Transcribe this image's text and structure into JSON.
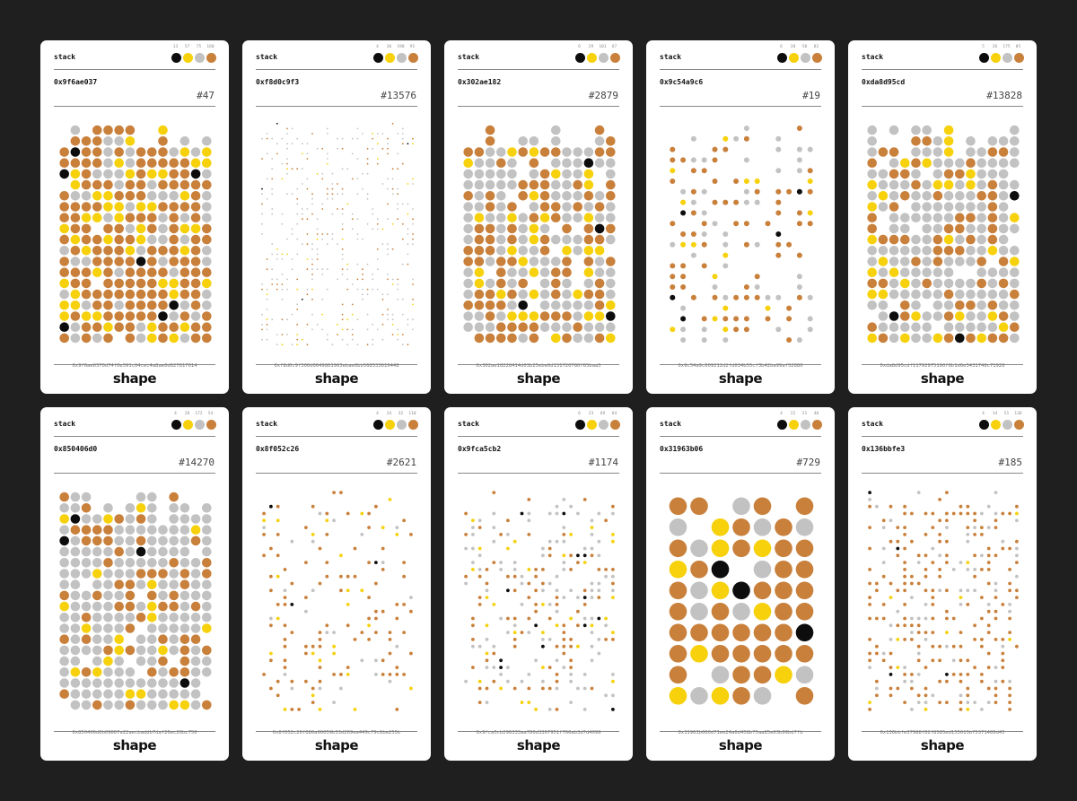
{
  "colors": {
    "black": "#0d0d0d",
    "yellow": "#f6d10c",
    "gray": "#c2c2c2",
    "orange": "#c9803b",
    "background": "#1f1f1f",
    "card": "#ffffff"
  },
  "cards": [
    {
      "name": "stack",
      "counts": [
        "13",
        "57",
        "75",
        "160"
      ],
      "address": "0x9f6ae037",
      "token": "#47",
      "hash": "0x9f6ae0370d74f0e591c64cec4a8ae0d627817014",
      "brand": "shape",
      "dot_size": "large",
      "density": 0.97
    },
    {
      "name": "stack",
      "counts": [
        "4",
        "36",
        "190",
        "91"
      ],
      "address": "0xf8d0c9f3",
      "token": "#13576",
      "hash": "0xf8d0c9f300d0649861963ebae0bb568533619448",
      "brand": "shape",
      "dot_size": "tiny",
      "density": 0.3
    },
    {
      "name": "stack",
      "counts": [
        "6",
        "29",
        "101",
        "67"
      ],
      "address": "0x302ae182",
      "token": "#2879",
      "hash": "0x302ae18228414d03b25ebe0d131720780f65baa5",
      "brand": "shape",
      "dot_size": "large",
      "density": 0.92
    },
    {
      "name": "stack",
      "counts": [
        "6",
        "20",
        "50",
        "82"
      ],
      "address": "0x9c54a9c6",
      "token": "#19",
      "hash": "0x9c54a9c609212d2fd034b55cf3b42ba99af52880",
      "brand": "shape",
      "dot_size": "medium",
      "density": 0.45
    },
    {
      "name": "stack",
      "counts": [
        "5",
        "26",
        "175",
        "85"
      ],
      "address": "0xda8d95cd",
      "token": "#13828",
      "hash": "0xda8d95cdf11792975190f8b1d6e5431746c71926",
      "brand": "shape",
      "dot_size": "large",
      "density": 0.93
    },
    {
      "name": "stack",
      "counts": [
        "4",
        "28",
        "172",
        "54"
      ],
      "address": "0x850406d0",
      "token": "#14270",
      "hash": "0x850406d0b09867a22aecbaddb7daf20ec20bc750",
      "brand": "shape",
      "dot_size": "large",
      "density": 0.96
    },
    {
      "name": "stack",
      "counts": [
        "4",
        "24",
        "32",
        "110"
      ],
      "address": "0x8f052c26",
      "token": "#2621",
      "hash": "0x8f052c26f086a90059b53d269ea449c79c6be255b",
      "brand": "shape",
      "dot_size": "small",
      "density": 0.22
    },
    {
      "name": "stack",
      "counts": [
        "6",
        "23",
        "69",
        "64"
      ],
      "address": "0x9fca5cb2",
      "token": "#1174",
      "hash": "0x9fca5cb296333aa780d3367951f766ab3d7d4098",
      "brand": "shape",
      "dot_size": "small",
      "density": 0.33
    },
    {
      "name": "stack",
      "counts": [
        "4",
        "22",
        "21",
        "40"
      ],
      "address": "0x31963b06",
      "token": "#729",
      "hash": "0x31963b060d71ee24a6d458b75aa85e63b99bd7fb",
      "brand": "shape",
      "dot_size": "huge",
      "density": 0.93
    },
    {
      "name": "stack",
      "counts": [
        "4",
        "14",
        "51",
        "136"
      ],
      "address": "0x136bbfe3",
      "token": "#185",
      "hash": "0x136bbfe37988f82f8585ed155615b75371489d45",
      "brand": "shape",
      "dot_size": "small",
      "density": 0.38
    }
  ]
}
